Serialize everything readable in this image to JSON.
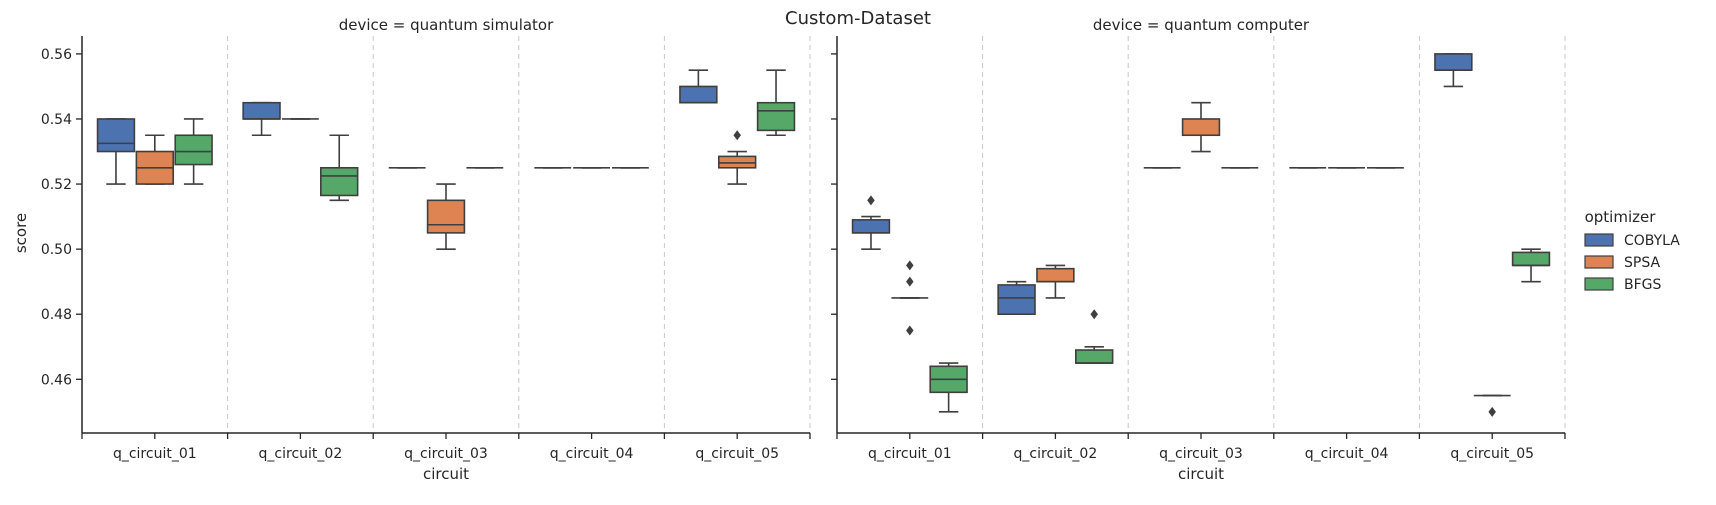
{
  "chart_data": {
    "type": "box",
    "title": "Custom-Dataset",
    "xlabel": "circuit",
    "ylabel": "score",
    "ylim": [
      0.4435,
      0.5655
    ],
    "yticks": [
      0.46,
      0.48,
      0.5,
      0.52,
      0.54,
      0.56
    ],
    "ytick_labels": [
      "0.46",
      "0.48",
      "0.50",
      "0.52",
      "0.54",
      "0.56"
    ],
    "categories": [
      "q_circuit_01",
      "q_circuit_02",
      "q_circuit_03",
      "q_circuit_04",
      "q_circuit_05"
    ],
    "legend": {
      "title": "optimizer",
      "placement": "right",
      "entries": [
        {
          "name": "COBYLA",
          "color": "#4c72b0"
        },
        {
          "name": "SPSA",
          "color": "#dd8452"
        },
        {
          "name": "BFGS",
          "color": "#55a868"
        }
      ]
    },
    "panels": [
      {
        "title": "device = quantum simulator",
        "groups": [
          {
            "category": "q_circuit_01",
            "boxes": [
              {
                "optimizer": "COBYLA",
                "whislo": 0.52,
                "q1": 0.53,
                "med": 0.5325,
                "q3": 0.54,
                "whishi": 0.54,
                "fliers": []
              },
              {
                "optimizer": "SPSA",
                "whislo": 0.52,
                "q1": 0.52,
                "med": 0.525,
                "q3": 0.53,
                "whishi": 0.535,
                "fliers": []
              },
              {
                "optimizer": "BFGS",
                "whislo": 0.52,
                "q1": 0.526,
                "med": 0.53,
                "q3": 0.535,
                "whishi": 0.54,
                "fliers": []
              }
            ]
          },
          {
            "category": "q_circuit_02",
            "boxes": [
              {
                "optimizer": "COBYLA",
                "whislo": 0.535,
                "q1": 0.54,
                "med": 0.54,
                "q3": 0.545,
                "whishi": 0.545,
                "fliers": []
              },
              {
                "optimizer": "SPSA",
                "whislo": 0.54,
                "q1": 0.54,
                "med": 0.54,
                "q3": 0.54,
                "whishi": 0.54,
                "fliers": []
              },
              {
                "optimizer": "BFGS",
                "whislo": 0.515,
                "q1": 0.5165,
                "med": 0.5225,
                "q3": 0.525,
                "whishi": 0.535,
                "fliers": []
              }
            ]
          },
          {
            "category": "q_circuit_03",
            "boxes": [
              {
                "optimizer": "COBYLA",
                "whislo": 0.525,
                "q1": 0.525,
                "med": 0.525,
                "q3": 0.525,
                "whishi": 0.525,
                "fliers": []
              },
              {
                "optimizer": "SPSA",
                "whislo": 0.5,
                "q1": 0.505,
                "med": 0.5075,
                "q3": 0.515,
                "whishi": 0.52,
                "fliers": []
              },
              {
                "optimizer": "BFGS",
                "whislo": 0.525,
                "q1": 0.525,
                "med": 0.525,
                "q3": 0.525,
                "whishi": 0.525,
                "fliers": []
              }
            ]
          },
          {
            "category": "q_circuit_04",
            "boxes": [
              {
                "optimizer": "COBYLA",
                "whislo": 0.525,
                "q1": 0.525,
                "med": 0.525,
                "q3": 0.525,
                "whishi": 0.525,
                "fliers": []
              },
              {
                "optimizer": "SPSA",
                "whislo": 0.525,
                "q1": 0.525,
                "med": 0.525,
                "q3": 0.525,
                "whishi": 0.525,
                "fliers": []
              },
              {
                "optimizer": "BFGS",
                "whislo": 0.525,
                "q1": 0.525,
                "med": 0.525,
                "q3": 0.525,
                "whishi": 0.525,
                "fliers": []
              }
            ]
          },
          {
            "category": "q_circuit_05",
            "boxes": [
              {
                "optimizer": "COBYLA",
                "whislo": 0.545,
                "q1": 0.545,
                "med": 0.545,
                "q3": 0.55,
                "whishi": 0.555,
                "fliers": []
              },
              {
                "optimizer": "SPSA",
                "whislo": 0.52,
                "q1": 0.525,
                "med": 0.5265,
                "q3": 0.5285,
                "whishi": 0.53,
                "fliers": [
                  0.535
                ]
              },
              {
                "optimizer": "BFGS",
                "whislo": 0.535,
                "q1": 0.5365,
                "med": 0.5425,
                "q3": 0.545,
                "whishi": 0.555,
                "fliers": []
              }
            ]
          }
        ]
      },
      {
        "title": "device = quantum computer",
        "groups": [
          {
            "category": "q_circuit_01",
            "boxes": [
              {
                "optimizer": "COBYLA",
                "whislo": 0.5,
                "q1": 0.505,
                "med": 0.505,
                "q3": 0.509,
                "whishi": 0.51,
                "fliers": [
                  0.515
                ]
              },
              {
                "optimizer": "SPSA",
                "whislo": 0.485,
                "q1": 0.485,
                "med": 0.485,
                "q3": 0.485,
                "whishi": 0.485,
                "fliers": [
                  0.475,
                  0.49,
                  0.495
                ]
              },
              {
                "optimizer": "BFGS",
                "whislo": 0.45,
                "q1": 0.456,
                "med": 0.46,
                "q3": 0.464,
                "whishi": 0.465,
                "fliers": []
              }
            ]
          },
          {
            "category": "q_circuit_02",
            "boxes": [
              {
                "optimizer": "COBYLA",
                "whislo": 0.48,
                "q1": 0.48,
                "med": 0.485,
                "q3": 0.489,
                "whishi": 0.49,
                "fliers": []
              },
              {
                "optimizer": "SPSA",
                "whislo": 0.485,
                "q1": 0.49,
                "med": 0.49,
                "q3": 0.494,
                "whishi": 0.495,
                "fliers": []
              },
              {
                "optimizer": "BFGS",
                "whislo": 0.465,
                "q1": 0.465,
                "med": 0.465,
                "q3": 0.469,
                "whishi": 0.47,
                "fliers": [
                  0.48
                ]
              }
            ]
          },
          {
            "category": "q_circuit_03",
            "boxes": [
              {
                "optimizer": "COBYLA",
                "whislo": 0.525,
                "q1": 0.525,
                "med": 0.525,
                "q3": 0.525,
                "whishi": 0.525,
                "fliers": []
              },
              {
                "optimizer": "SPSA",
                "whislo": 0.53,
                "q1": 0.535,
                "med": 0.535,
                "q3": 0.54,
                "whishi": 0.545,
                "fliers": []
              },
              {
                "optimizer": "BFGS",
                "whislo": 0.525,
                "q1": 0.525,
                "med": 0.525,
                "q3": 0.525,
                "whishi": 0.525,
                "fliers": []
              }
            ]
          },
          {
            "category": "q_circuit_04",
            "boxes": [
              {
                "optimizer": "COBYLA",
                "whislo": 0.525,
                "q1": 0.525,
                "med": 0.525,
                "q3": 0.525,
                "whishi": 0.525,
                "fliers": []
              },
              {
                "optimizer": "SPSA",
                "whislo": 0.525,
                "q1": 0.525,
                "med": 0.525,
                "q3": 0.525,
                "whishi": 0.525,
                "fliers": []
              },
              {
                "optimizer": "BFGS",
                "whislo": 0.525,
                "q1": 0.525,
                "med": 0.525,
                "q3": 0.525,
                "whishi": 0.525,
                "fliers": []
              }
            ]
          },
          {
            "category": "q_circuit_05",
            "boxes": [
              {
                "optimizer": "COBYLA",
                "whislo": 0.55,
                "q1": 0.555,
                "med": 0.555,
                "q3": 0.56,
                "whishi": 0.56,
                "fliers": []
              },
              {
                "optimizer": "SPSA",
                "whislo": 0.455,
                "q1": 0.455,
                "med": 0.455,
                "q3": 0.455,
                "whishi": 0.455,
                "fliers": [
                  0.45
                ]
              },
              {
                "optimizer": "BFGS",
                "whislo": 0.49,
                "q1": 0.495,
                "med": 0.495,
                "q3": 0.499,
                "whishi": 0.5,
                "fliers": []
              }
            ]
          }
        ]
      }
    ]
  }
}
